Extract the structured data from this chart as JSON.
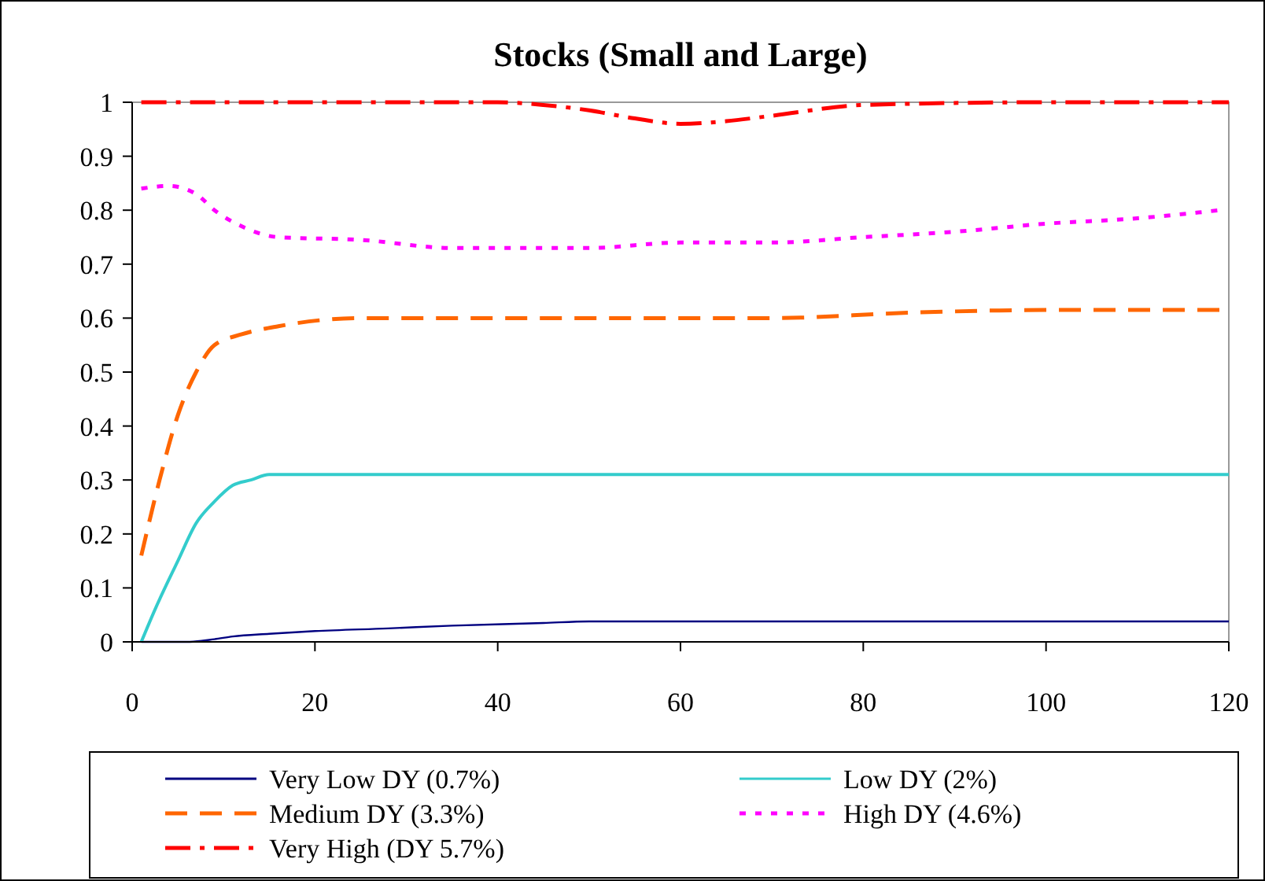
{
  "chart_data": {
    "type": "line",
    "title": "Stocks (Small and Large)",
    "xlim": [
      0,
      120
    ],
    "xticks": [
      0,
      20,
      40,
      60,
      80,
      100,
      120
    ],
    "ylim": [
      0,
      1
    ],
    "yticks": [
      0,
      0.1,
      0.2,
      0.3,
      0.4,
      0.5,
      0.6,
      0.7,
      0.8,
      0.9,
      1
    ],
    "grid": false,
    "legend": "bottom",
    "series": [
      {
        "name": "Very Low DY (0.7%)",
        "color": "#000080",
        "line_style": "solid",
        "x": [
          1,
          6,
          9,
          11,
          15,
          20,
          28,
          35,
          45,
          50,
          120
        ],
        "values": [
          0,
          0,
          0.005,
          0.01,
          0.015,
          0.02,
          0.025,
          0.03,
          0.035,
          0.038,
          0.038
        ]
      },
      {
        "name": "Low DY (2%)",
        "color": "#33cccc",
        "line_style": "solid",
        "x": [
          1,
          2.5,
          5,
          7,
          9,
          11,
          13,
          15,
          120
        ],
        "values": [
          0,
          0.06,
          0.15,
          0.22,
          0.26,
          0.29,
          0.3,
          0.31,
          0.31
        ]
      },
      {
        "name": "Medium DY (3.3%)",
        "color": "#ff6600",
        "line_style": "dashed",
        "x": [
          1,
          3,
          5,
          7,
          9,
          12,
          16,
          25,
          50,
          70,
          85,
          100,
          120
        ],
        "values": [
          0.16,
          0.3,
          0.42,
          0.5,
          0.55,
          0.57,
          0.585,
          0.6,
          0.6,
          0.6,
          0.61,
          0.615,
          0.615
        ]
      },
      {
        "name": "High DY (4.6%)",
        "color": "#ff00ff",
        "line_style": "dotted",
        "x": [
          1,
          4,
          7,
          9,
          12,
          16,
          25,
          35,
          50,
          60,
          70,
          80,
          90,
          100,
          110,
          119
        ],
        "values": [
          0.84,
          0.845,
          0.83,
          0.8,
          0.77,
          0.75,
          0.745,
          0.73,
          0.73,
          0.74,
          0.74,
          0.75,
          0.76,
          0.775,
          0.785,
          0.8
        ]
      },
      {
        "name": "Very High (DY 5.7%)",
        "color": "#ff0000",
        "line_style": "dashdot",
        "x": [
          1,
          20,
          40,
          45,
          50,
          55,
          60,
          65,
          70,
          80,
          100,
          120
        ],
        "values": [
          1,
          1,
          1,
          0.995,
          0.985,
          0.97,
          0.96,
          0.965,
          0.975,
          0.995,
          1,
          1
        ]
      }
    ]
  }
}
